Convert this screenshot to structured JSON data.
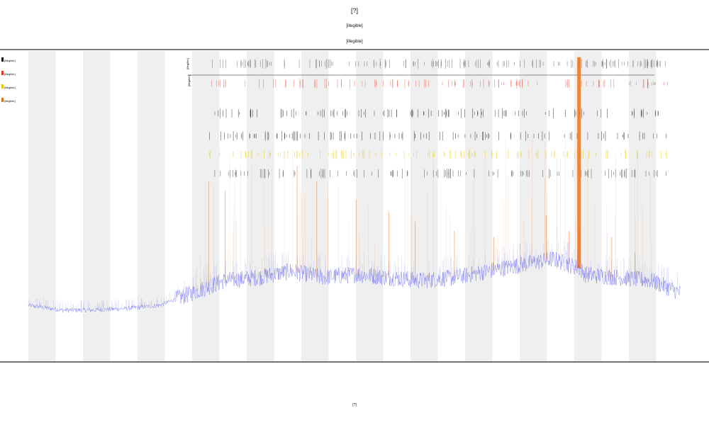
{
  "chart_data": {
    "type": "line",
    "title": "[?]",
    "subtitle_lines": [
      "[illegible]",
      "[illegible]"
    ],
    "xlabel": "[?]",
    "ylabel": "",
    "legend_placement": "top-left",
    "legend": [
      {
        "label": "[illegible]",
        "color": "#111111"
      },
      {
        "label": "[illegible]",
        "color": "#e03a2a"
      },
      {
        "label": "[illegible]",
        "color": "#e8c800"
      },
      {
        "label": "[illegible]",
        "color": "#cc7722"
      }
    ],
    "grid": false,
    "background_bands": "alternating gray/white",
    "ylim": [
      0,
      100
    ],
    "x_count": 200,
    "series": [
      {
        "type": "line",
        "color": "#6666ee",
        "note": "noisy continuous signal",
        "keypoints": [
          [
            0,
            18
          ],
          [
            10,
            16.5
          ],
          [
            20,
            16.5
          ],
          [
            30,
            17
          ],
          [
            40,
            18
          ],
          [
            45,
            20
          ],
          [
            50,
            22
          ],
          [
            60,
            26
          ],
          [
            70,
            27
          ],
          [
            80,
            29
          ],
          [
            90,
            27
          ],
          [
            100,
            28
          ],
          [
            110,
            27
          ],
          [
            120,
            26
          ],
          [
            130,
            27
          ],
          [
            140,
            29
          ],
          [
            150,
            31
          ],
          [
            160,
            33
          ],
          [
            168,
            30
          ],
          [
            170,
            28
          ],
          [
            180,
            27
          ],
          [
            190,
            26
          ],
          [
            199,
            22
          ]
        ]
      },
      {
        "type": "event-spikes",
        "color": "#ee7722",
        "note": "vertical orange spikes, strongest near x≈168",
        "events": [
          [
            55,
            58
          ],
          [
            60,
            55
          ],
          [
            82,
            63
          ],
          [
            88,
            58
          ],
          [
            100,
            52
          ],
          [
            110,
            48
          ],
          [
            118,
            45
          ],
          [
            130,
            42
          ],
          [
            142,
            40
          ],
          [
            150,
            38
          ],
          [
            158,
            47
          ],
          [
            165,
            42
          ],
          [
            168,
            98
          ],
          [
            178,
            40
          ],
          [
            185,
            35
          ]
        ]
      }
    ],
    "event_tracks": [
      {
        "row": 1,
        "color": "#555555",
        "label": "[illegible]"
      },
      {
        "row": 2,
        "color": "#e03a2a",
        "label": "[illegible]"
      },
      {
        "row": 3,
        "color": "#111111",
        "label": ""
      },
      {
        "row": 4,
        "color": "#111111",
        "label": ""
      },
      {
        "row": 5,
        "color": "#e8c800",
        "label": ""
      },
      {
        "row": 6,
        "color": "#333333",
        "label": ""
      }
    ]
  }
}
